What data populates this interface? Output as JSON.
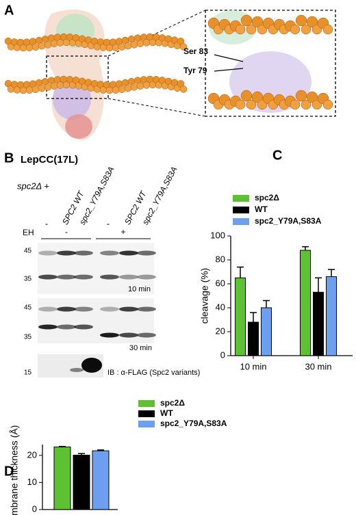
{
  "panel_a": {
    "label": "A",
    "annotations": [
      "Ser 83",
      "Tyr 79"
    ]
  },
  "panel_b": {
    "label": "B",
    "title": "LepCC(17L)",
    "strain": "spc2Δ +",
    "lanes": [
      "-",
      "SPC2 WT",
      "spc2_Y79A,S83A",
      "-",
      "SPC2 WT",
      "spc2_Y79A,S83A"
    ],
    "eh": "EH",
    "eh_conditions": [
      "-",
      "+"
    ],
    "blots": [
      {
        "markers": [
          "45",
          "35"
        ],
        "time": "10 min"
      },
      {
        "markers": [
          "45",
          "35"
        ],
        "time": "30 min"
      },
      {
        "markers": [
          "15"
        ],
        "caption": "IB : α-FLAG (Spc2 variants)"
      }
    ]
  },
  "chart_data": [
    {
      "type": "bar",
      "panel": "C",
      "ylabel": "cleavage (%)",
      "categories": [
        "10 min",
        "30 min"
      ],
      "series": [
        {
          "name": "spc2Δ",
          "color": "#5dc132",
          "values": [
            65,
            88
          ],
          "errors": [
            9,
            3
          ]
        },
        {
          "name": "WT",
          "color": "#000000",
          "values": [
            28,
            53
          ],
          "errors": [
            8,
            12
          ]
        },
        {
          "name": "spc2_Y79A,S83A",
          "color": "#6d9ff0",
          "values": [
            40,
            66
          ],
          "errors": [
            6,
            6
          ]
        }
      ],
      "ylim": [
        0,
        100
      ],
      "yticks": [
        0,
        20,
        40,
        60,
        80,
        100
      ]
    },
    {
      "type": "bar",
      "panel": "D",
      "ylabel": "Membrane thickness (Å)",
      "categories": [
        null
      ],
      "series": [
        {
          "name": "spc2Δ",
          "color": "#5dc132",
          "values": [
            23.1
          ],
          "errors": [
            0.2
          ]
        },
        {
          "name": "WT",
          "color": "#000000",
          "values": [
            20.1
          ],
          "errors": [
            0.6
          ]
        },
        {
          "name": "spc2_Y79A,S83A",
          "color": "#6d9ff0",
          "values": [
            21.7
          ],
          "errors": [
            0.3
          ]
        }
      ],
      "ylim": [
        0,
        24
      ],
      "yticks": [
        0,
        10,
        20
      ]
    }
  ]
}
